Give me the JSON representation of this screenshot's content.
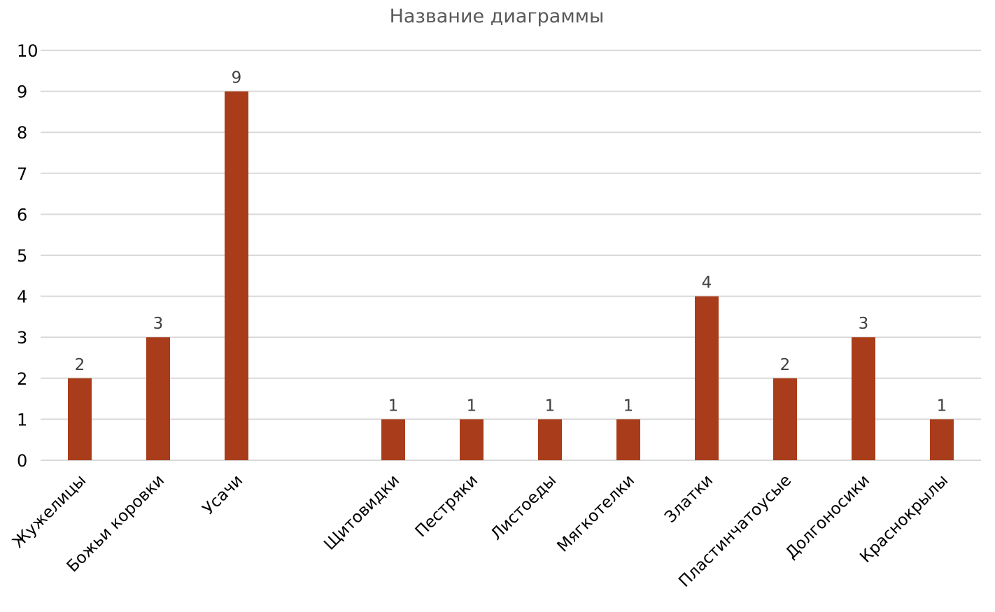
{
  "chart_data": {
    "type": "bar",
    "title": "Название диаграммы",
    "categories": [
      "Жужелицы",
      "Божьи коровки",
      "Усачи",
      "",
      "Щитовидки",
      "Пестряки",
      "Листоеды",
      "Мягкотелки",
      "Златки",
      "Пластинчатоусые",
      "Долгоносики",
      "Краснокрылы"
    ],
    "values": [
      2,
      3,
      9,
      null,
      1,
      1,
      1,
      1,
      4,
      2,
      3,
      1
    ],
    "data_labels": [
      "2",
      "3",
      "9",
      "",
      "1",
      "1",
      "1",
      "1",
      "4",
      "2",
      "3",
      "1"
    ],
    "ylim": [
      0,
      10
    ],
    "yticks": [
      "0",
      "1",
      "2",
      "3",
      "4",
      "5",
      "6",
      "7",
      "8",
      "9",
      "10"
    ],
    "xlabel": "",
    "ylabel": "",
    "grid": true,
    "legend": "none",
    "bar_color": "#a93c1a"
  }
}
